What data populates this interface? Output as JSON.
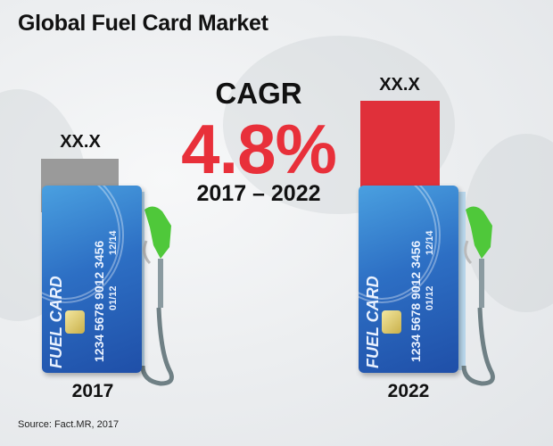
{
  "title": "Global Fuel Card Market",
  "cagr": {
    "label": "CAGR",
    "value": "4.8%",
    "period": "2017 – 2022"
  },
  "chart_data": {
    "type": "bar",
    "categories": [
      "2017",
      "2022"
    ],
    "data_labels": [
      "XX.X",
      "XX.X"
    ],
    "colors": [
      "#9a9a9a",
      "#e0303a"
    ]
  },
  "card": {
    "brand": "FUEL CARD",
    "number": "1234  5678  9012  3456",
    "valid_from": "01/12",
    "expiration": "12/14"
  },
  "source": "Source: Fact.MR, 2017"
}
